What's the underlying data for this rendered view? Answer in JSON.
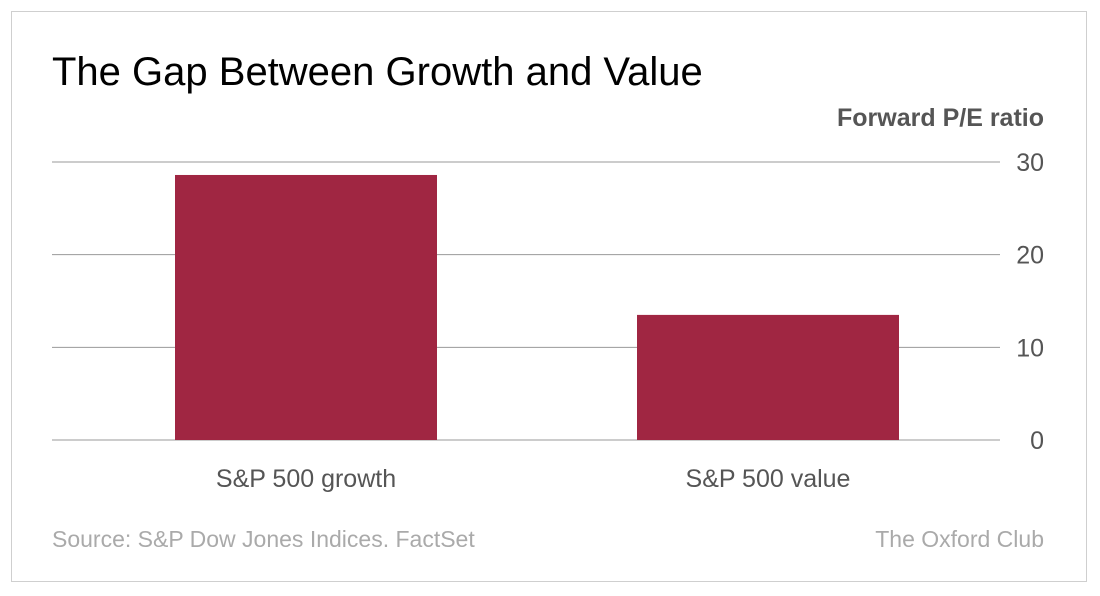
{
  "chart_data": {
    "type": "bar",
    "title": "The Gap Between Growth and Value",
    "ylabel": "Forward P/E ratio",
    "xlabel": "",
    "categories": [
      "S&P 500 growth",
      "S&P 500 value"
    ],
    "values": [
      28.6,
      13.5
    ],
    "ylim": [
      0,
      30
    ],
    "yticks": [
      0,
      10,
      20,
      30
    ],
    "ytick_labels": [
      "0",
      "10",
      "20",
      "30"
    ],
    "y_axis_side": "right",
    "grid": true,
    "bar_color": "#a02642",
    "grid_color": "#999999"
  },
  "footer": {
    "source": "Source: S&P Dow Jones Indices. FactSet",
    "brand": "The Oxford Club"
  }
}
